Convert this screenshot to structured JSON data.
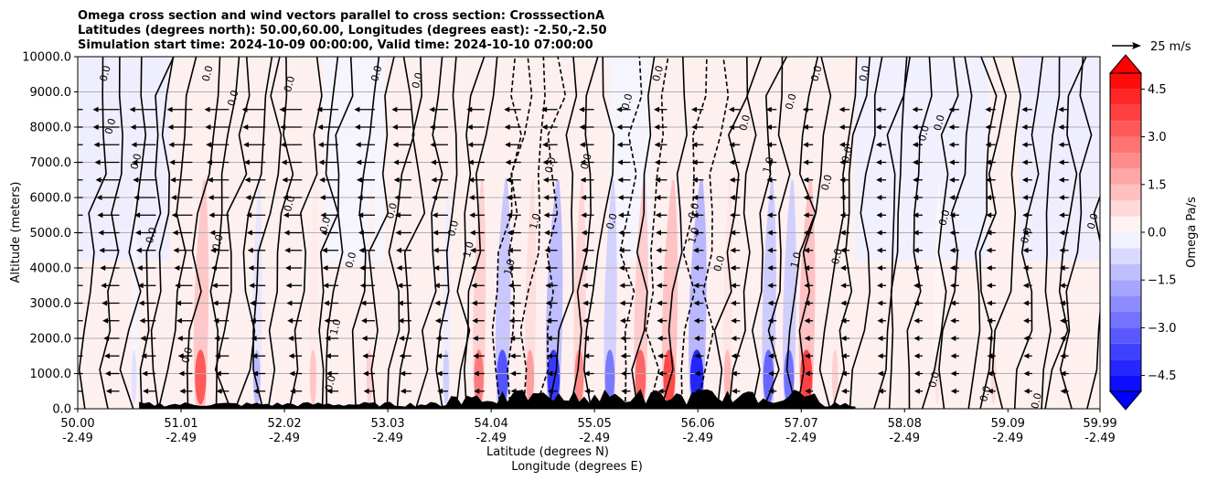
{
  "chart_data": {
    "type": "heatmap",
    "title_lines": [
      "Omega cross section and wind vectors parallel to cross section: CrosssectionA",
      "Latitudes (degrees north): 50.00,60.00, Longitudes (degrees east): -2.50,-2.50",
      "Simulation start time: 2024-10-09 00:00:00, Valid time: 2024-10-10 07:00:00"
    ],
    "ylabel": "Altitude (meters)",
    "xlabel_lines": [
      "Latitude (degrees N)",
      "Longitude (degrees E)"
    ],
    "ylim": [
      0,
      10000
    ],
    "xlim": [
      50.0,
      59.99
    ],
    "yticks": [
      0,
      1000,
      2000,
      3000,
      4000,
      5000,
      6000,
      7000,
      8000,
      9000,
      10000
    ],
    "ytick_labels": [
      "0.0",
      "1000.0",
      "2000.0",
      "3000.0",
      "4000.0",
      "5000.0",
      "6000.0",
      "7000.0",
      "8000.0",
      "9000.0",
      "10000.0"
    ],
    "xticks": [
      {
        "lat": 50.0,
        "lat_label": "50.00",
        "lon_label": "-2.49"
      },
      {
        "lat": 51.01,
        "lat_label": "51.01",
        "lon_label": "-2.49"
      },
      {
        "lat": 52.02,
        "lat_label": "52.02",
        "lon_label": "-2.49"
      },
      {
        "lat": 53.03,
        "lat_label": "53.03",
        "lon_label": "-2.49"
      },
      {
        "lat": 54.04,
        "lat_label": "54.04",
        "lon_label": "-2.49"
      },
      {
        "lat": 55.05,
        "lat_label": "55.05",
        "lon_label": "-2.49"
      },
      {
        "lat": 56.06,
        "lat_label": "56.06",
        "lon_label": "-2.49"
      },
      {
        "lat": 57.07,
        "lat_label": "57.07",
        "lon_label": "-2.49"
      },
      {
        "lat": 58.08,
        "lat_label": "58.08",
        "lon_label": "-2.49"
      },
      {
        "lat": 59.09,
        "lat_label": "59.09",
        "lon_label": "-2.49"
      },
      {
        "lat": 59.99,
        "lat_label": "59.99",
        "lon_label": "-2.49"
      }
    ],
    "grid": "horizontal",
    "colorbar": {
      "label": "Omega Pa/s",
      "range": [
        -5.0,
        5.0
      ],
      "ticks": [
        4.5,
        3.0,
        1.5,
        0.0,
        -1.5,
        -3.0,
        -4.5
      ],
      "tick_labels": [
        "4.5",
        "3.0",
        "1.5",
        "0.0",
        "−1.5",
        "−3.0",
        "−4.5"
      ],
      "colormap": "bwr",
      "extend": "both",
      "neg_color": "#0000ff",
      "pos_color": "#ff0000",
      "mid_color": "#ffffff"
    },
    "quiver_key": {
      "label": "25 m/s",
      "speed": 25
    },
    "updraft_columns": [
      {
        "lat": 50.55,
        "omega": -0.6
      },
      {
        "lat": 51.2,
        "omega": 3.5
      },
      {
        "lat": 51.75,
        "omega": -1.5
      },
      {
        "lat": 52.3,
        "omega": 1.2
      },
      {
        "lat": 52.85,
        "omega": 1.0
      },
      {
        "lat": 53.6,
        "omega": -1.0
      },
      {
        "lat": 53.92,
        "omega": 2.8
      },
      {
        "lat": 54.15,
        "omega": -3.6
      },
      {
        "lat": 54.42,
        "omega": 2.0
      },
      {
        "lat": 54.65,
        "omega": -4.2
      },
      {
        "lat": 54.9,
        "omega": 2.5
      },
      {
        "lat": 55.2,
        "omega": -2.8
      },
      {
        "lat": 55.5,
        "omega": 3.2
      },
      {
        "lat": 55.78,
        "omega": 3.8
      },
      {
        "lat": 56.05,
        "omega": -4.6
      },
      {
        "lat": 56.35,
        "omega": 1.5
      },
      {
        "lat": 56.75,
        "omega": -3.2
      },
      {
        "lat": 56.95,
        "omega": -3.0
      },
      {
        "lat": 57.12,
        "omega": 4.0
      },
      {
        "lat": 57.4,
        "omega": 1.0
      },
      {
        "lat": 58.4,
        "omega": 0.6
      },
      {
        "lat": 58.95,
        "omega": 0.8
      }
    ],
    "contour_labels": [
      {
        "text": "0.0",
        "lat": 50.3,
        "alt": 9500
      },
      {
        "text": "0.0",
        "lat": 50.35,
        "alt": 8000
      },
      {
        "text": "0.0",
        "lat": 50.6,
        "alt": 7000
      },
      {
        "text": "0.0",
        "lat": 50.75,
        "alt": 4900
      },
      {
        "text": "0.0",
        "lat": 51.3,
        "alt": 9500
      },
      {
        "text": "0.0",
        "lat": 51.55,
        "alt": 8800
      },
      {
        "text": "0.0",
        "lat": 51.4,
        "alt": 4700
      },
      {
        "text": "0.0",
        "lat": 52.1,
        "alt": 9200
      },
      {
        "text": "0.0",
        "lat": 52.1,
        "alt": 5800
      },
      {
        "text": "0.0",
        "lat": 52.45,
        "alt": 5200
      },
      {
        "text": "0.0",
        "lat": 52.7,
        "alt": 4200
      },
      {
        "text": "0.0",
        "lat": 52.95,
        "alt": 9500
      },
      {
        "text": "0.0",
        "lat": 53.1,
        "alt": 5600
      },
      {
        "text": "0.0",
        "lat": 53.35,
        "alt": 9300
      },
      {
        "text": "0.0",
        "lat": 53.7,
        "alt": 5100
      },
      {
        "text": "1.0",
        "lat": 53.85,
        "alt": 4500
      },
      {
        "text": "1.0",
        "lat": 54.25,
        "alt": 4000
      },
      {
        "text": "1.0",
        "lat": 54.5,
        "alt": 5300
      },
      {
        "text": "0.0",
        "lat": 54.65,
        "alt": 6900
      },
      {
        "text": "0.0",
        "lat": 55.0,
        "alt": 7000
      },
      {
        "text": "0.0",
        "lat": 55.25,
        "alt": 5300
      },
      {
        "text": "0.0",
        "lat": 55.4,
        "alt": 8700
      },
      {
        "text": "0.0",
        "lat": 55.7,
        "alt": 9500
      },
      {
        "text": "0.0",
        "lat": 56.05,
        "alt": 5600
      },
      {
        "text": "1.0",
        "lat": 56.05,
        "alt": 4900
      },
      {
        "text": "0.0",
        "lat": 56.3,
        "alt": 4100
      },
      {
        "text": "0.0",
        "lat": 56.55,
        "alt": 8100
      },
      {
        "text": "1.0",
        "lat": 56.78,
        "alt": 6900
      },
      {
        "text": "0.0",
        "lat": 57.0,
        "alt": 8700
      },
      {
        "text": "1.0",
        "lat": 57.05,
        "alt": 4200
      },
      {
        "text": "0.0",
        "lat": 57.25,
        "alt": 9500
      },
      {
        "text": "0.0",
        "lat": 57.35,
        "alt": 6400
      },
      {
        "text": "0.0",
        "lat": 57.55,
        "alt": 7200
      },
      {
        "text": "0.0",
        "lat": 57.45,
        "alt": 4300
      },
      {
        "text": "0.0",
        "lat": 57.72,
        "alt": 9500
      },
      {
        "text": "0.0",
        "lat": 58.3,
        "alt": 7800
      },
      {
        "text": "0.0",
        "lat": 58.45,
        "alt": 8100
      },
      {
        "text": "0.0",
        "lat": 58.5,
        "alt": 5400
      },
      {
        "text": "0.0",
        "lat": 59.3,
        "alt": 4900
      },
      {
        "text": "0.0",
        "lat": 59.95,
        "alt": 5300
      },
      {
        "text": "1.0",
        "lat": 52.55,
        "alt": 2300
      },
      {
        "text": "0.0",
        "lat": 51.1,
        "alt": 1500
      },
      {
        "text": "0.0",
        "lat": 52.5,
        "alt": 700
      },
      {
        "text": "0.0",
        "lat": 58.4,
        "alt": 800
      },
      {
        "text": "0.0",
        "lat": 58.9,
        "alt": 400
      },
      {
        "text": "0.0",
        "lat": 59.4,
        "alt": 200
      }
    ]
  }
}
